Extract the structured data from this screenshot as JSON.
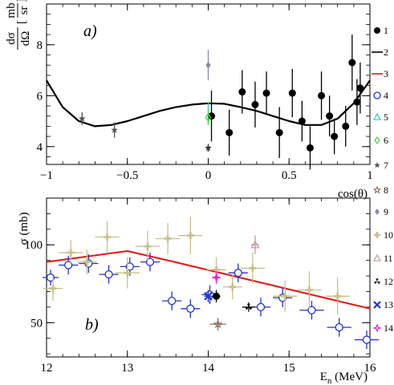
{
  "chart_data": [
    {
      "type": "scatter",
      "panel_label": "a)",
      "ylabel": "dσ/dΩ [mb/sr]",
      "ylabel_num": "dσ",
      "ylabel_den": "dΩ",
      "ylabel_unit_num": "mb",
      "ylabel_unit_den": "sr",
      "xlabel": "cos(θ)",
      "xlim": [
        -1,
        1
      ],
      "ylim": [
        3.3,
        9.6
      ],
      "x_ticks": [
        -1,
        -0.5,
        0,
        0.5,
        1
      ],
      "x_tick_labels": [
        "−1",
        "−0.5",
        "0",
        "0.5",
        "1"
      ],
      "y_ticks": [
        4,
        6,
        8
      ],
      "y_tick_labels": [
        "4",
        "6",
        "8"
      ],
      "curve": {
        "color": "#000000",
        "x": [
          -1.0,
          -0.9,
          -0.8,
          -0.7,
          -0.6,
          -0.5,
          -0.4,
          -0.3,
          -0.2,
          -0.1,
          0.0,
          0.1,
          0.2,
          0.3,
          0.4,
          0.5,
          0.6,
          0.7,
          0.8,
          0.9,
          1.0
        ],
        "y": [
          6.6,
          5.55,
          5.0,
          4.8,
          4.85,
          5.0,
          5.2,
          5.4,
          5.55,
          5.65,
          5.7,
          5.68,
          5.55,
          5.4,
          5.2,
          5.0,
          4.85,
          4.85,
          5.1,
          5.7,
          6.6
        ]
      },
      "series_points": [
        {
          "legend": "1",
          "color": "#000000",
          "marker": "dot",
          "x": [
            0.02,
            0.13,
            0.21,
            0.29,
            0.36,
            0.44,
            0.52,
            0.58,
            0.63,
            0.7,
            0.75,
            0.78,
            0.85,
            0.89,
            0.92,
            0.94
          ],
          "y": [
            5.2,
            4.55,
            6.15,
            5.65,
            6.1,
            4.55,
            6.1,
            5.0,
            3.95,
            6.0,
            5.2,
            4.4,
            4.8,
            7.3,
            5.75,
            6.3
          ],
          "err": [
            1.0,
            0.9,
            0.85,
            0.9,
            0.85,
            1.0,
            0.95,
            0.8,
            0.85,
            0.95,
            0.8,
            0.7,
            0.8,
            1.1,
            0.9,
            1.0
          ]
        },
        {
          "legend": "7",
          "color": "#555555",
          "marker": "star",
          "x": [
            -0.78,
            -0.58
          ],
          "y": [
            5.1,
            4.65
          ],
          "err": [
            0.25,
            0.3
          ]
        },
        {
          "legend": "9",
          "color": "#8888aa",
          "marker": "diamond",
          "x": [
            0.0
          ],
          "y": [
            7.2
          ],
          "err": [
            0.6
          ]
        },
        {
          "legend": "5",
          "color": "#33ccbb",
          "marker": "triangle",
          "x": [
            0.0
          ],
          "y": [
            5.3
          ],
          "err": [
            0.45
          ]
        },
        {
          "legend": "6",
          "color": "#44cc44",
          "marker": "diamond-open",
          "x": [
            0.0
          ],
          "y": [
            5.15
          ],
          "err": [
            0.3
          ]
        },
        {
          "legend": "7",
          "color": "#333333",
          "marker": "star",
          "x": [
            0.0
          ],
          "y": [
            3.95
          ],
          "err": [
            0.15
          ]
        }
      ]
    },
    {
      "type": "scatter",
      "panel_label": "b)",
      "ylabel": "σ (mb)",
      "xlabel": "En (MeV)",
      "xlabel_main": "E",
      "xlabel_sub": "n",
      "xlabel_unit": " (MeV)",
      "xlim": [
        12,
        16
      ],
      "ylim": [
        28,
        130
      ],
      "x_ticks": [
        12,
        13,
        14,
        15,
        16
      ],
      "x_tick_labels": [
        "12",
        "13",
        "14",
        "15",
        "16"
      ],
      "y_ticks": [
        50,
        100
      ],
      "y_tick_labels": [
        "50",
        "100"
      ],
      "curve": {
        "color": "#ee1111",
        "x": [
          12.0,
          13.0,
          13.5,
          16.0
        ],
        "y": [
          89,
          96,
          90,
          59
        ]
      },
      "series_points": [
        {
          "legend": "4",
          "color": "#2233cc",
          "marker": "circle-open",
          "x": [
            12.05,
            12.27,
            12.52,
            12.77,
            13.03,
            13.28,
            13.55,
            13.78,
            14.02,
            14.37,
            14.65,
            14.92,
            15.28,
            15.62,
            15.96
          ],
          "y": [
            79,
            87,
            88,
            81,
            86,
            89,
            64,
            59,
            68,
            82,
            60,
            66,
            58,
            47,
            39
          ],
          "xerr": [
            0.1,
            0.12,
            0.12,
            0.12,
            0.12,
            0.12,
            0.12,
            0.12,
            0.1,
            0.12,
            0.12,
            0.12,
            0.15,
            0.15,
            0.15
          ],
          "err": [
            5,
            6,
            6,
            6,
            6,
            6,
            6,
            6,
            6,
            6,
            6,
            6,
            6,
            6,
            6
          ]
        },
        {
          "legend": "10",
          "color": "#c8c08a",
          "marker": "plus",
          "x": [
            12.08,
            12.3,
            12.5,
            12.75,
            13.0,
            13.25,
            13.5,
            13.78,
            14.1,
            14.3,
            14.55,
            14.95,
            15.25,
            15.6
          ],
          "y": [
            72,
            95,
            89,
            105,
            82,
            99,
            104,
            106,
            84,
            73,
            85,
            67,
            71,
            67
          ],
          "xerr": [
            0.12,
            0.15,
            0.12,
            0.15,
            0.15,
            0.15,
            0.15,
            0.15,
            0.12,
            0.12,
            0.15,
            0.15,
            0.15,
            0.15
          ],
          "err": [
            8,
            8,
            8,
            10,
            10,
            10,
            10,
            12,
            8,
            8,
            10,
            10,
            12,
            12
          ]
        },
        {
          "legend": "8",
          "color": "#8b6b5b",
          "marker": "star-open",
          "x": [
            14.12
          ],
          "y": [
            49
          ],
          "xerr": [
            0.1
          ],
          "err": [
            4
          ]
        },
        {
          "legend": "11",
          "color": "#c49a9a",
          "marker": "triangle-open",
          "x": [
            14.58
          ],
          "y": [
            100
          ],
          "xerr": [
            0.05
          ],
          "err": [
            6
          ]
        },
        {
          "legend": "12",
          "color": "#000000",
          "marker": "trefoil",
          "x": [
            14.5
          ],
          "y": [
            60
          ],
          "xerr": [
            0.08
          ],
          "err": [
            3
          ]
        },
        {
          "legend": "13",
          "color": "#2233cc",
          "marker": "cross",
          "x": [
            14.0
          ],
          "y": [
            67
          ],
          "xerr": [
            0.05
          ],
          "err": [
            4
          ]
        },
        {
          "legend": "14",
          "color": "#ee22cc",
          "marker": "star4",
          "x": [
            14.1
          ],
          "y": [
            79
          ],
          "xerr": [
            0.05
          ],
          "err": [
            4
          ]
        },
        {
          "legend": "1",
          "color": "#000000",
          "marker": "dot",
          "x": [
            14.1
          ],
          "y": [
            67
          ],
          "xerr": [
            0.05
          ],
          "err": [
            4
          ]
        }
      ]
    }
  ],
  "legend": {
    "entries": [
      {
        "label": "1",
        "marker": "dot",
        "color": "#000000"
      },
      {
        "label": "2",
        "marker": "line",
        "color": "#000000"
      },
      {
        "label": "3",
        "marker": "line",
        "color": "#ee1111"
      },
      {
        "label": "4",
        "marker": "circle-open",
        "color": "#2233cc"
      },
      {
        "label": "5",
        "marker": "triangle-open",
        "color": "#33ccbb"
      },
      {
        "label": "6",
        "marker": "diamond-open",
        "color": "#44cc44"
      },
      {
        "label": "7",
        "marker": "star",
        "color": "#555555"
      },
      {
        "label": "8",
        "marker": "star-open",
        "color": "#8b6b5b"
      },
      {
        "label": "9",
        "marker": "diamond",
        "color": "#8888aa"
      },
      {
        "label": "10",
        "marker": "plus",
        "color": "#c8c08a"
      },
      {
        "label": "11",
        "marker": "triangle-open",
        "color": "#c49a9a"
      },
      {
        "label": "12",
        "marker": "trefoil",
        "color": "#000000"
      },
      {
        "label": "13",
        "marker": "cross",
        "color": "#2233cc"
      },
      {
        "label": "14",
        "marker": "star4",
        "color": "#ee22cc"
      }
    ]
  }
}
